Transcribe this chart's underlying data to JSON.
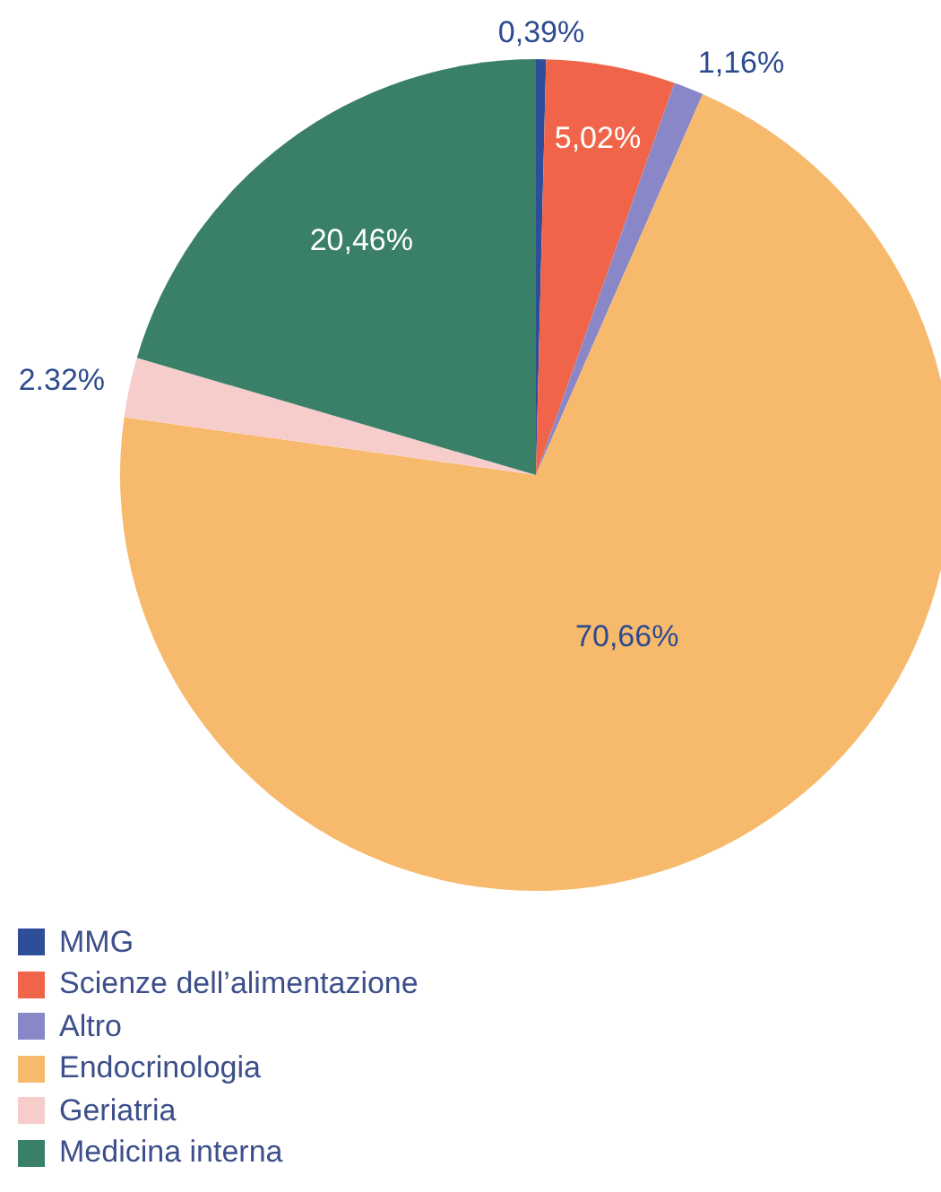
{
  "chart_data": {
    "type": "pie",
    "categories": [
      "MMG",
      "Scienze dell’alimentazione",
      "Altro",
      "Endocrinologia",
      "Geriatria",
      "Medicina interna"
    ],
    "values": [
      0.39,
      5.02,
      1.16,
      70.66,
      2.32,
      20.46
    ],
    "colors": [
      "#2e4e9a",
      "#f0654a",
      "#8a87c9",
      "#f7ba6c",
      "#f7cdcc",
      "#3a7f68"
    ],
    "value_labels": [
      "0,39%",
      "5,02%",
      "1,16%",
      "70,66%",
      "2.32%",
      "20,46%"
    ],
    "legend": "bottom left"
  }
}
